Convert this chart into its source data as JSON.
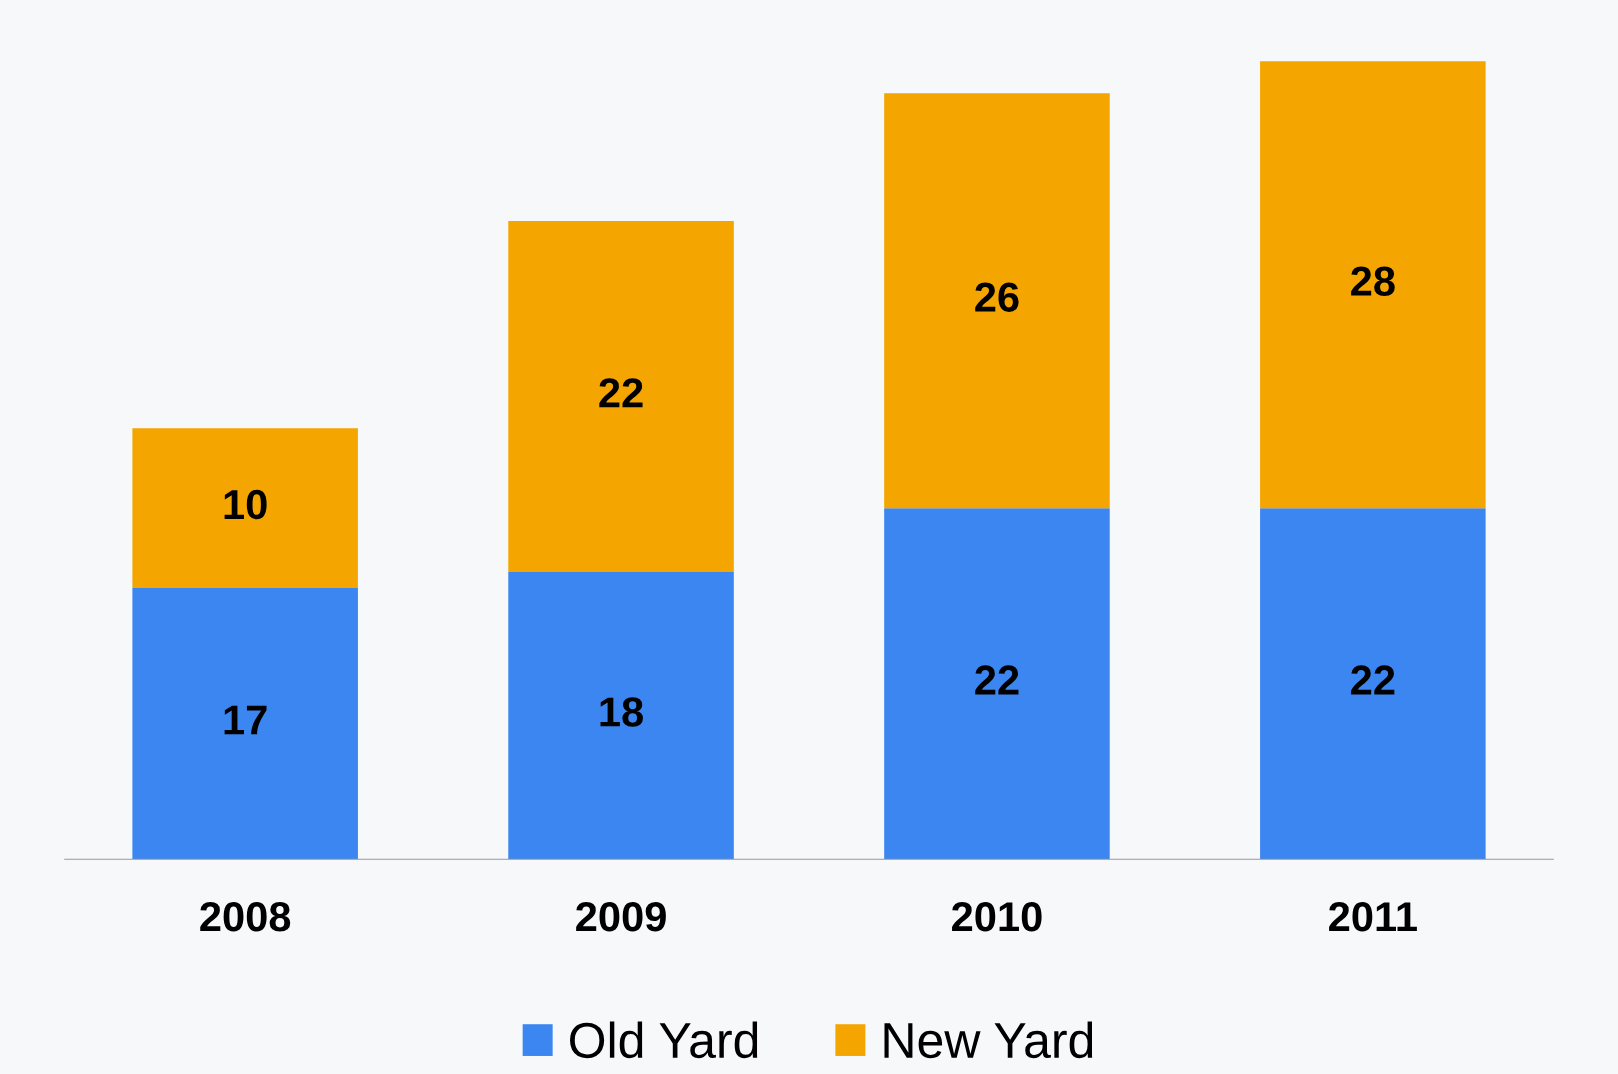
{
  "chart_data": {
    "type": "bar",
    "stacked": true,
    "data_labels": true,
    "legend": "bottom",
    "grid": false,
    "categories": [
      "2008",
      "2009",
      "2010",
      "2011"
    ],
    "series": [
      {
        "name": "Old Yard",
        "color": "#3b86f0",
        "values": [
          17,
          18,
          22,
          22
        ]
      },
      {
        "name": "New Yard",
        "color": "#f5a500",
        "values": [
          10,
          22,
          26,
          28
        ]
      }
    ]
  }
}
